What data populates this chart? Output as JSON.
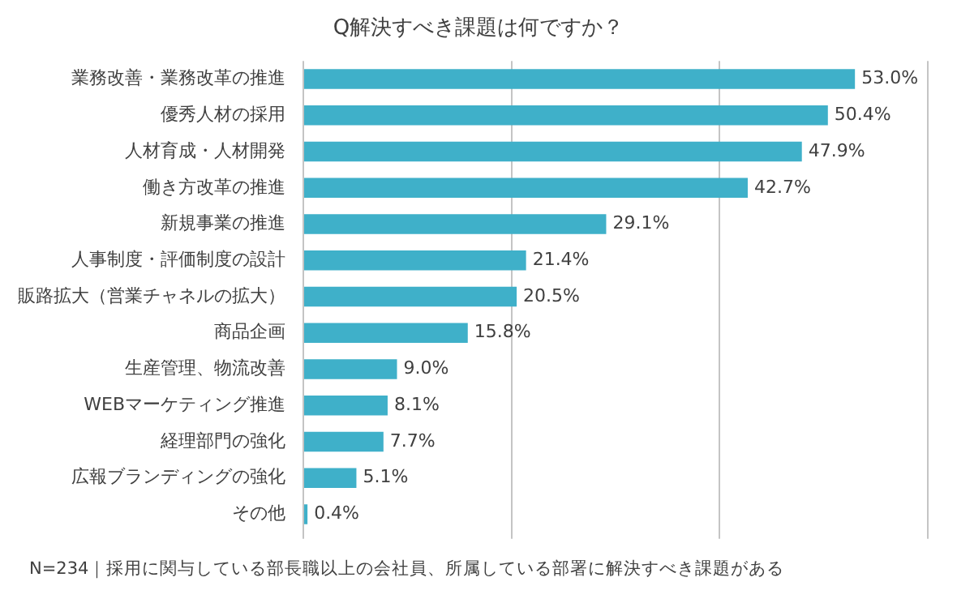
{
  "chart_data": {
    "type": "bar",
    "orientation": "horizontal",
    "title": "Q解決すべき課題は何ですか？",
    "categories": [
      "業務改善・業務改革の推進",
      "優秀人材の採用",
      "人材育成・人材開発",
      "働き方改革の推進",
      "新規事業の推進",
      "人事制度・評価制度の設計",
      "販路拡大（営業チャネルの拡大）",
      "商品企画",
      "生産管理、物流改善",
      "WEBマーケティング推進",
      "経理部門の強化",
      "広報ブランディングの強化",
      "その他"
    ],
    "values": [
      53.0,
      50.4,
      47.9,
      42.7,
      29.1,
      21.4,
      20.5,
      15.8,
      9.0,
      8.1,
      7.7,
      5.1,
      0.4
    ],
    "value_labels": [
      "53.0%",
      "50.4%",
      "47.9%",
      "42.7%",
      "29.1%",
      "21.4%",
      "20.5%",
      "15.8%",
      "9.0%",
      "8.1%",
      "7.7%",
      "5.1%",
      "0.4%"
    ],
    "color": "#3fb0c9",
    "xlim": [
      0,
      60
    ],
    "xticks": [
      {
        "value": 0,
        "label": null
      },
      {
        "value": 20,
        "label": null
      },
      {
        "value": 40,
        "label": null
      },
      {
        "value": 60,
        "label": null
      }
    ],
    "grid": "x",
    "tick_labels": "y",
    "annotations": [
      "N=234｜採用に関与している部長職以上の会社員、所属している部署に解決すべき課題がある"
    ]
  }
}
